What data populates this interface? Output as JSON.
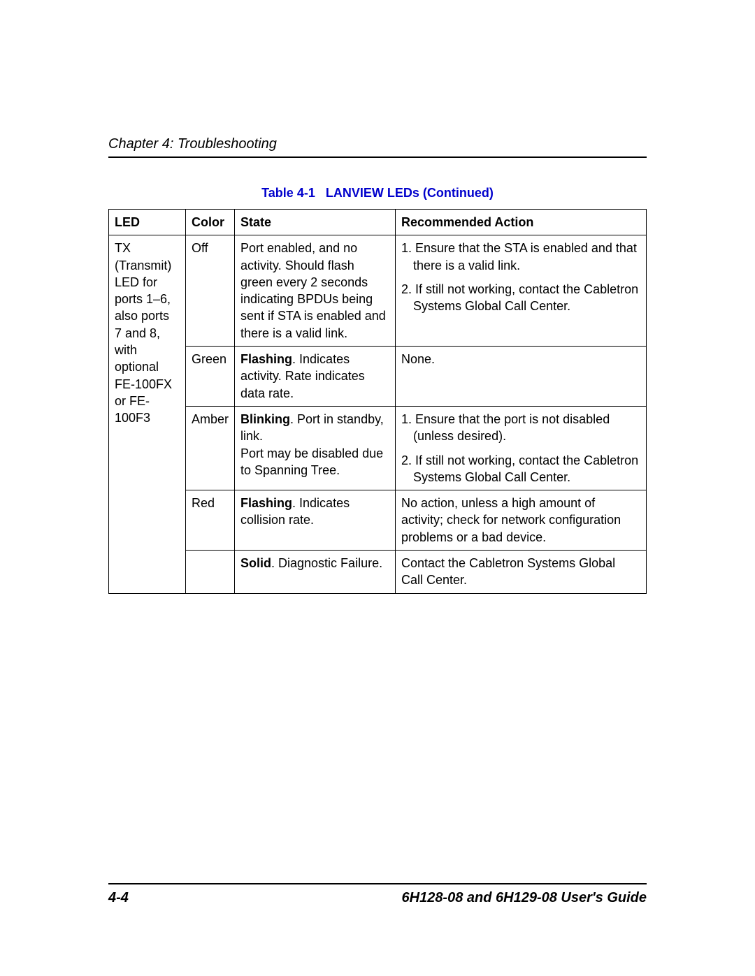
{
  "header": {
    "chapter": "Chapter 4: Troubleshooting"
  },
  "table": {
    "caption_prefix": "Table 4-1",
    "caption_title": "LANVIEW LEDs (Continued)",
    "columns": [
      "LED",
      "Color",
      "State",
      "Recommended Action"
    ],
    "led_label": "TX (Transmit) LED for ports 1–6, also ports 7 and 8, with optional FE-100FX or FE-100F3",
    "rows": [
      {
        "color": "Off",
        "state_prefix": "",
        "state_rest": "Port enabled, and no activity. Should flash green every 2 seconds indicating BPDUs being sent if STA is enabled and there is a valid link.",
        "actions": [
          "1. Ensure that the STA is enabled and that there is a valid link.",
          "2. If still not working, contact the Cabletron Systems Global Call Center."
        ],
        "numbered": true
      },
      {
        "color": "Green",
        "state_prefix": "Flashing",
        "state_rest": ". Indicates activity. Rate indicates data rate.",
        "actions": [
          "None."
        ],
        "numbered": false
      },
      {
        "color": "Amber",
        "state_prefix": "Blinking",
        "state_rest": ". Port in standby, link.\nPort may be disabled due to Spanning Tree.",
        "actions": [
          "1. Ensure that the port is not disabled (unless desired).",
          "2. If still not working, contact the Cabletron Systems Global Call Center."
        ],
        "numbered": true
      },
      {
        "color": "Red",
        "state_prefix": "Flashing",
        "state_rest": ". Indicates collision rate.",
        "actions": [
          "No action, unless a high amount of activity; check for network configuration problems or a bad device."
        ],
        "numbered": false
      },
      {
        "color": "",
        "state_prefix": "Solid",
        "state_rest": ". Diagnostic Failure.",
        "actions": [
          "Contact the Cabletron Systems Global Call Center."
        ],
        "numbered": false
      }
    ]
  },
  "footer": {
    "page": "4-4",
    "guide": "6H128-08 and 6H129-08 User's Guide"
  },
  "colors": {
    "caption": "#0000cc",
    "text": "#000000",
    "background": "#ffffff"
  },
  "typography": {
    "body_fontsize": 18,
    "header_fontsize": 20,
    "footer_fontsize": 20
  }
}
